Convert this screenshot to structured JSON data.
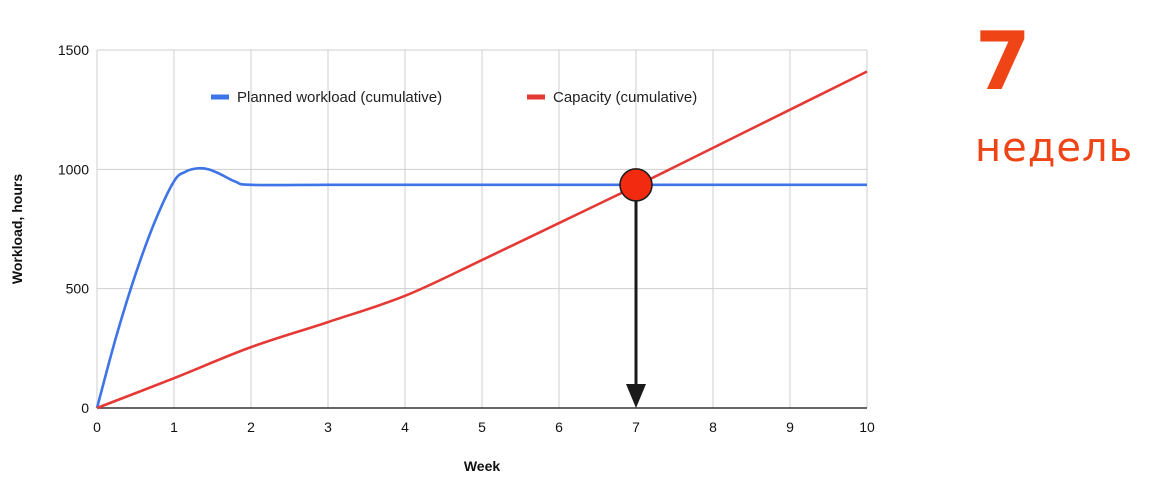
{
  "chart_data": {
    "type": "line",
    "xlabel": "Week",
    "ylabel": "Workload, hours",
    "xlim": [
      0,
      10
    ],
    "ylim": [
      0,
      1500
    ],
    "x_ticks": [
      "0",
      "1",
      "2",
      "3",
      "4",
      "5",
      "6",
      "7",
      "8",
      "9",
      "10"
    ],
    "y_ticks": [
      "0",
      "500",
      "1000",
      "1500"
    ],
    "grid": true,
    "legend_position": "top",
    "series": [
      {
        "name": "Planned workload (cumulative)",
        "color": "#3d74e8",
        "x": [
          0,
          0.25,
          0.5,
          0.75,
          1.0,
          1.15,
          1.3,
          1.45,
          1.6,
          1.8,
          2.0,
          3,
          4,
          5,
          6,
          7,
          8,
          9,
          10
        ],
        "y": [
          0,
          300,
          560,
          780,
          950,
          990,
          1004,
          1000,
          980,
          948,
          935,
          935,
          935,
          935,
          935,
          935,
          935,
          935,
          935
        ]
      },
      {
        "name": "Capacity (cumulative)",
        "color": "#e53935",
        "x": [
          0,
          1,
          2,
          3,
          4,
          5,
          6,
          7,
          8,
          9,
          10
        ],
        "y": [
          0,
          125,
          255,
          360,
          470,
          620,
          775,
          930,
          1090,
          1250,
          1410
        ]
      }
    ],
    "annotations": {
      "intersection": {
        "x": 7,
        "y": 935,
        "color": "#f22a10"
      },
      "arrow": {
        "x": 7,
        "from_y": 935,
        "to_y": 0,
        "color": "#1a1a1a"
      }
    }
  },
  "callout": {
    "number": "7",
    "unit": "недель",
    "color": "#ef4416"
  }
}
